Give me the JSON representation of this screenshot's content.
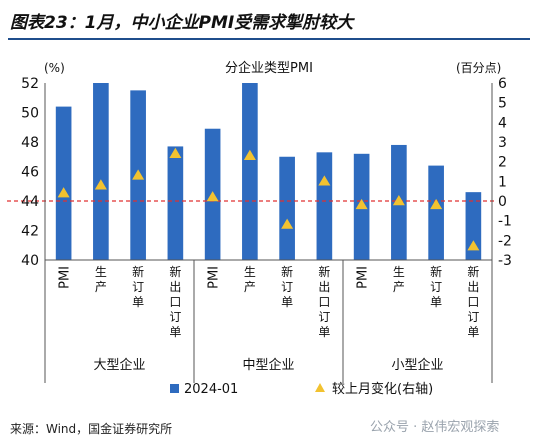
{
  "figure": {
    "title": "图表23：1月，中小企业PMI受需求掣肘较大",
    "source": "来源：Wind，国金证券研究所",
    "watermark": "公众号 · 赵伟宏观探索"
  },
  "chart_data": {
    "type": "bar",
    "title": "分企业类型PMI",
    "left_axis_unit": "(%)",
    "right_axis_unit": "(百分点)",
    "ylim": [
      40,
      52
    ],
    "yticks": [
      40,
      42,
      44,
      46,
      48,
      50,
      52
    ],
    "y2lim": [
      -3,
      6
    ],
    "y2ticks": [
      -3,
      -2,
      -1,
      0,
      1,
      2,
      3,
      4,
      5,
      6
    ],
    "reference_line": {
      "axis": "right",
      "value": 0,
      "color": "#e03030",
      "style": "dashed"
    },
    "categories": [
      "PMI",
      "生产",
      "新订单",
      "新出口订单",
      "PMI",
      "生产",
      "新订单",
      "新出口订单",
      "PMI",
      "生产",
      "新订单",
      "新出口订单"
    ],
    "groups": [
      {
        "label": "大型企业",
        "count": 4
      },
      {
        "label": "中型企业",
        "count": 4
      },
      {
        "label": "小型企业",
        "count": 4
      }
    ],
    "series": [
      {
        "name": "2024-01",
        "type": "bar",
        "axis": "left",
        "color": "#2e6bbf",
        "values": [
          50.4,
          52.0,
          51.5,
          47.7,
          48.9,
          52.0,
          47.0,
          47.3,
          47.2,
          47.8,
          46.4,
          44.6
        ]
      },
      {
        "name": "较上月变化(右轴)",
        "type": "marker",
        "marker": "triangle",
        "axis": "right",
        "color": "#f2c230",
        "values": [
          0.4,
          0.8,
          1.3,
          2.4,
          0.2,
          2.3,
          -1.2,
          1.0,
          -0.2,
          0.0,
          -0.2,
          -2.3
        ]
      }
    ],
    "legend": "bottom"
  }
}
